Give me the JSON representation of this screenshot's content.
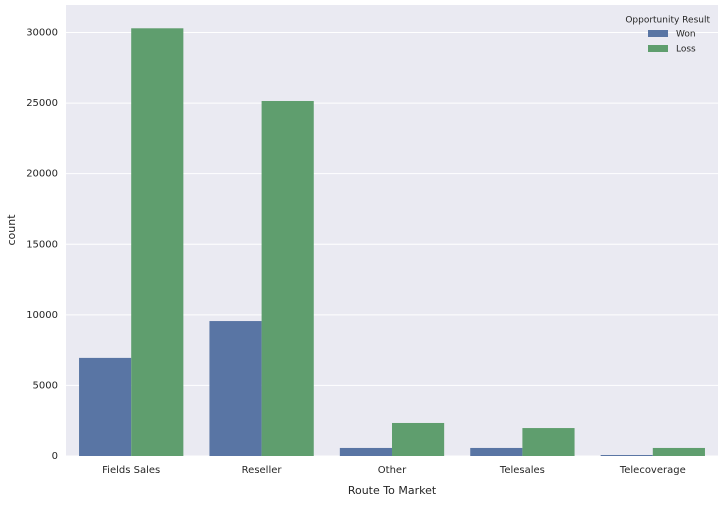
{
  "chart_data": {
    "type": "bar",
    "x_label": "Route To Market",
    "y_label": "count",
    "categories": [
      "Fields Sales",
      "Reseller",
      "Other",
      "Telesales",
      "Telecoverage"
    ],
    "series": [
      {
        "name": "Won",
        "color": "#5975a4",
        "values": [
          6950,
          9560,
          570,
          570,
          70
        ]
      },
      {
        "name": "Loss",
        "color": "#5f9e6e",
        "values": [
          30300,
          25150,
          2340,
          1980,
          570
        ]
      }
    ],
    "legend_title": "Opportunity Result",
    "legend": "upper right",
    "ylim": [
      0,
      31950
    ],
    "yticks": [
      0,
      5000,
      10000,
      15000,
      20000,
      25000,
      30000
    ],
    "grid": true
  }
}
